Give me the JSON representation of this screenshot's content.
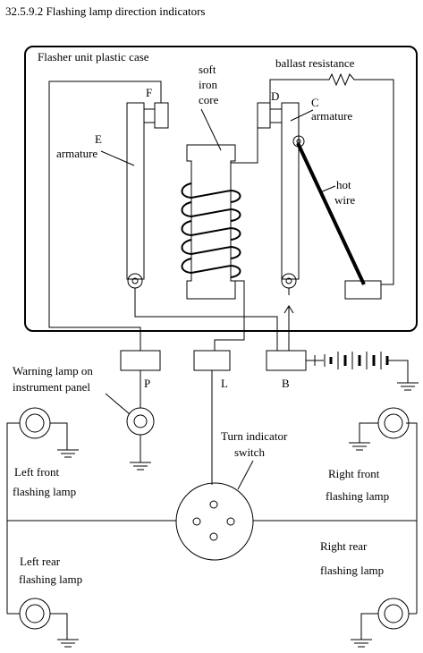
{
  "title": "32.5.9.2 Flashing lamp direction indicators",
  "labels": {
    "case": "Flasher unit plastic case",
    "soft": "soft",
    "iron": "iron",
    "core": "core",
    "ballast": "ballast resistance",
    "F": "F",
    "D": "D",
    "C": "C",
    "armature_right": "armature",
    "E": "E",
    "armature_left": "armature",
    "hot": "hot",
    "wire": "wire",
    "warning1": "Warning lamp on",
    "warning2": "instrument panel",
    "P": "P",
    "L": "L",
    "B": "B",
    "turn1": "Turn indicator",
    "turn2": "switch",
    "lf1": "Left  front",
    "lf2": "flashing lamp",
    "rf1": "Right  front",
    "rf2": "flashing lamp",
    "lr1": "Left  rear",
    "lr2": "flashing lamp",
    "rr1": "Right  rear",
    "rr2": "flashing lamp"
  }
}
